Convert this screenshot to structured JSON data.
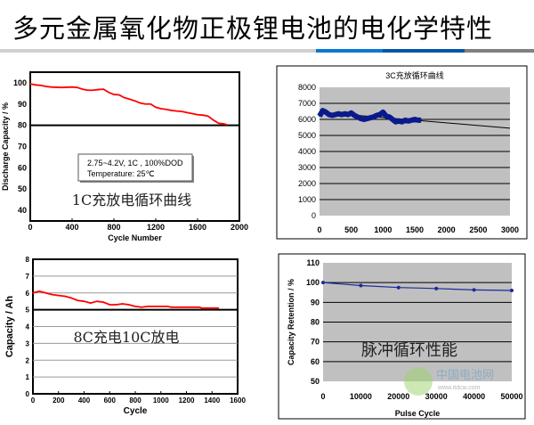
{
  "page": {
    "title": "多元金属氧化物正极锂电池的电化学特性",
    "accent_colors": [
      "#d0d0d0",
      "#0a78d6",
      "#0057a8",
      "#808080"
    ]
  },
  "watermark": {
    "text": "中国电池网",
    "url_text": "www.itdcw.com"
  },
  "chart_data": [
    {
      "type": "line",
      "caption": "1C充放电循环曲线",
      "xlabel": "Cycle Number",
      "ylabel": "Discharge Capacity / %",
      "xlim": [
        0,
        2000
      ],
      "ylim": [
        35,
        105
      ],
      "xticks": [
        0,
        400,
        800,
        1200,
        1600,
        2000
      ],
      "yticks": [
        40,
        50,
        60,
        70,
        80,
        90,
        100
      ],
      "reference_line": 80,
      "color": "#ff0000",
      "legend": [
        "2.75~4.2V, 1C , 100%DOD",
        "Temperature: 25℃"
      ],
      "x": [
        0,
        50,
        100,
        150,
        200,
        300,
        400,
        450,
        500,
        550,
        600,
        650,
        700,
        750,
        800,
        850,
        900,
        950,
        1000,
        1050,
        1100,
        1150,
        1200,
        1250,
        1300,
        1350,
        1400,
        1450,
        1500,
        1550,
        1600,
        1650,
        1700,
        1750,
        1800,
        1850,
        1880
      ],
      "y": [
        99.5,
        99,
        98.8,
        98.3,
        98,
        97.8,
        98,
        97.8,
        97,
        96.5,
        96.5,
        96.8,
        97,
        95.5,
        94.5,
        94.3,
        93,
        92.3,
        91.5,
        90.5,
        90,
        90,
        88.5,
        87.8,
        87.5,
        87,
        86.7,
        86.5,
        86,
        85.5,
        85,
        84.8,
        84.3,
        82.5,
        81,
        80.7,
        80.3
      ]
    },
    {
      "type": "scatter",
      "title": "3C充放循环曲线",
      "xlim": [
        0,
        3000
      ],
      "ylim": [
        0,
        8000
      ],
      "xticks": [
        0,
        500,
        1000,
        1500,
        2000,
        2500,
        3000
      ],
      "yticks": [
        0,
        1000,
        2000,
        3000,
        4000,
        5000,
        6000,
        7000,
        8000
      ],
      "grid": true,
      "color": "#0a1a8c",
      "trend": {
        "x": [
          0,
          3000
        ],
        "y": [
          6450,
          5450
        ]
      },
      "x": [
        0,
        50,
        100,
        150,
        200,
        250,
        300,
        350,
        400,
        450,
        500,
        550,
        600,
        650,
        700,
        750,
        800,
        850,
        900,
        950,
        1000,
        1050,
        1100,
        1150,
        1200,
        1250,
        1300,
        1350,
        1400,
        1450,
        1500,
        1550,
        1600
      ],
      "y": [
        6200,
        6550,
        6450,
        6300,
        6250,
        6300,
        6350,
        6300,
        6350,
        6300,
        6400,
        6250,
        6150,
        6050,
        6000,
        6050,
        6100,
        6150,
        6250,
        6300,
        6450,
        6200,
        6150,
        6000,
        5850,
        5900,
        5850,
        5950,
        5900,
        5950,
        6000,
        5950,
        5950
      ]
    },
    {
      "type": "line",
      "caption": "8C充电10C放电",
      "xlabel": "Cycle",
      "ylabel": "Capacity / Ah",
      "xlim": [
        0,
        1600
      ],
      "ylim": [
        0,
        8
      ],
      "xticks": [
        0,
        200,
        400,
        600,
        800,
        1000,
        1200,
        1400,
        1600
      ],
      "yticks": [
        0,
        1,
        2,
        3,
        4,
        5,
        6,
        7,
        8
      ],
      "reference_line": 5,
      "color": "#ff0000",
      "x": [
        0,
        50,
        100,
        150,
        200,
        250,
        300,
        350,
        400,
        450,
        500,
        550,
        600,
        650,
        700,
        750,
        800,
        850,
        900,
        930,
        950,
        1050,
        1080,
        1300,
        1320,
        1450
      ],
      "y": [
        6.0,
        6.1,
        6.0,
        5.9,
        5.85,
        5.8,
        5.7,
        5.55,
        5.5,
        5.4,
        5.5,
        5.45,
        5.3,
        5.3,
        5.35,
        5.3,
        5.2,
        5.15,
        5.2,
        5.2,
        5.2,
        5.2,
        5.15,
        5.15,
        5.1,
        5.1
      ]
    },
    {
      "type": "line",
      "caption": "脉冲循环性能",
      "xlabel": "Pulse Cycle",
      "ylabel": "Capacity Retention / %",
      "xlim": [
        0,
        50000
      ],
      "ylim": [
        50,
        110
      ],
      "xticks": [
        0,
        10000,
        20000,
        30000,
        40000,
        50000
      ],
      "yticks": [
        50,
        60,
        70,
        80,
        90,
        100,
        110
      ],
      "grid": true,
      "color": "#1a2a9a",
      "x": [
        0,
        10000,
        20000,
        30000,
        40000,
        50000
      ],
      "y": [
        100,
        98.5,
        97.5,
        97,
        96.3,
        96
      ]
    }
  ]
}
